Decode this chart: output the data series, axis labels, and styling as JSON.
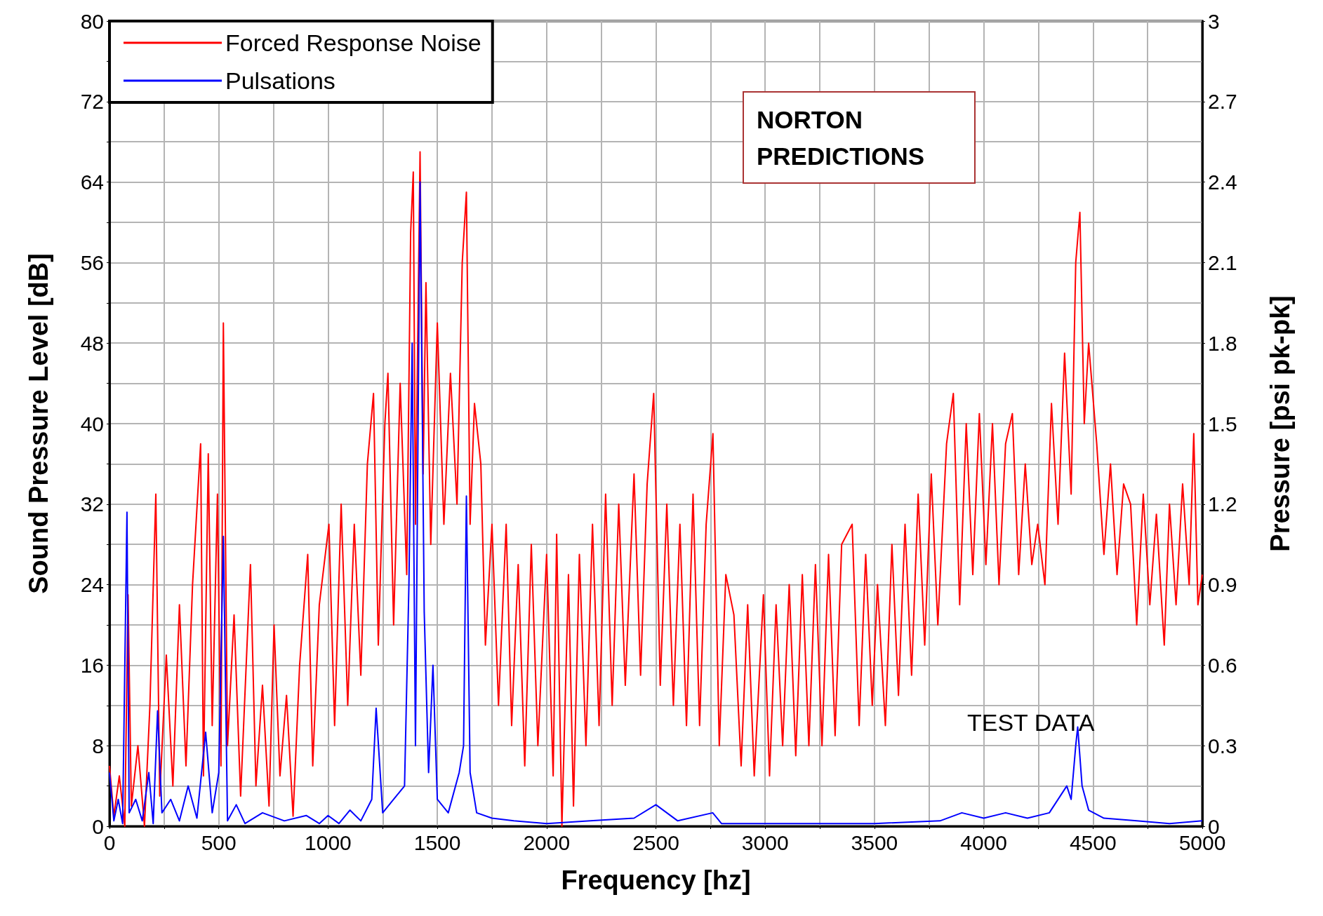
{
  "chart_data": {
    "type": "line",
    "xlabel": "Frequency [hz]",
    "ylabel": "Sound Pressure Level [dB]",
    "y2label": "Pressure [psi pk-pk]",
    "xlim": [
      0,
      5000
    ],
    "xticks": [
      0,
      {
        "value": 250,
        "label": null
      },
      500,
      {
        "value": 750,
        "label": null
      },
      1000,
      {
        "value": 1250,
        "label": null
      },
      1500,
      {
        "value": 1750,
        "label": null
      },
      2000,
      {
        "value": 2250,
        "label": null
      },
      2500,
      {
        "value": 2750,
        "label": null
      },
      3000,
      {
        "value": 3250,
        "label": null
      },
      3500,
      {
        "value": 3750,
        "label": null
      },
      4000,
      {
        "value": 4250,
        "label": null
      },
      4500,
      {
        "value": 4750,
        "label": null
      },
      5000
    ],
    "ylim": [
      0,
      80
    ],
    "yticks": [
      0,
      {
        "value": 4,
        "label": null
      },
      8,
      {
        "value": 12,
        "label": null
      },
      16,
      {
        "value": 20,
        "label": null
      },
      24,
      {
        "value": 28,
        "label": null
      },
      32,
      {
        "value": 36,
        "label": null
      },
      40,
      {
        "value": 44,
        "label": null
      },
      48,
      {
        "value": 52,
        "label": null
      },
      56,
      {
        "value": 60,
        "label": null
      },
      64,
      {
        "value": 68,
        "label": null
      },
      72,
      {
        "value": 76,
        "label": null
      },
      80
    ],
    "y2lim": [
      0,
      3
    ],
    "y2ticks": [
      0,
      0.3,
      0.6,
      0.9,
      1.2,
      1.5,
      1.8,
      2.1,
      2.4,
      2.7,
      3
    ],
    "grid": true,
    "legend": "top left",
    "marker": "none",
    "line_style": "solid",
    "annotations": [
      "NORTON PREDICTIONS",
      "TEST DATA"
    ],
    "series": [
      {
        "name": "Forced Response Noise",
        "color": "#ff0000",
        "x": [
          0,
          20,
          45,
          70,
          85,
          100,
          130,
          160,
          185,
          212,
          230,
          260,
          290,
          320,
          350,
          380,
          417,
          430,
          452,
          470,
          494,
          510,
          521,
          540,
          570,
          600,
          645,
          670,
          700,
          730,
          753,
          780,
          810,
          840,
          870,
          907,
          930,
          960,
          1004,
          1030,
          1060,
          1090,
          1120,
          1150,
          1180,
          1208,
          1230,
          1260,
          1274,
          1300,
          1330,
          1360,
          1378,
          1390,
          1400,
          1421,
          1435,
          1448,
          1470,
          1500,
          1530,
          1560,
          1590,
          1614,
          1633,
          1650,
          1670,
          1699,
          1720,
          1750,
          1780,
          1815,
          1840,
          1870,
          1900,
          1930,
          1960,
          2000,
          2030,
          2046,
          2070,
          2100,
          2123,
          2150,
          2180,
          2210,
          2240,
          2270,
          2300,
          2330,
          2360,
          2400,
          2430,
          2460,
          2490,
          2520,
          2550,
          2580,
          2610,
          2640,
          2670,
          2700,
          2730,
          2761,
          2790,
          2820,
          2857,
          2890,
          2920,
          2950,
          2992,
          3020,
          3050,
          3080,
          3110,
          3140,
          3170,
          3200,
          3230,
          3260,
          3290,
          3320,
          3350,
          3398,
          3430,
          3460,
          3490,
          3514,
          3550,
          3580,
          3610,
          3640,
          3670,
          3700,
          3730,
          3760,
          3790,
          3830,
          3861,
          3890,
          3920,
          3950,
          3980,
          4010,
          4040,
          4070,
          4100,
          4131,
          4160,
          4190,
          4220,
          4247,
          4280,
          4310,
          4340,
          4370,
          4400,
          4421,
          4440,
          4460,
          4480,
          4517,
          4550,
          4580,
          4610,
          4640,
          4672,
          4700,
          4730,
          4760,
          4790,
          4826,
          4850,
          4880,
          4910,
          4940,
          4961,
          4980,
          5000
        ],
        "values": [
          6,
          1,
          5,
          0,
          23,
          2,
          8,
          0,
          12,
          33,
          3,
          17,
          4,
          22,
          6,
          24,
          38,
          5,
          37,
          10,
          33,
          6,
          50,
          8,
          21,
          3,
          26,
          4,
          14,
          2,
          20,
          5,
          13,
          1,
          16,
          27,
          6,
          22,
          30,
          10,
          32,
          12,
          30,
          15,
          36,
          43,
          18,
          40,
          45,
          20,
          44,
          25,
          59,
          65,
          30,
          67,
          35,
          54,
          28,
          50,
          30,
          45,
          32,
          56,
          63,
          30,
          42,
          36,
          18,
          30,
          12,
          30,
          10,
          26,
          6,
          28,
          8,
          27,
          5,
          29,
          0,
          25,
          2,
          27,
          8,
          30,
          10,
          33,
          12,
          32,
          14,
          35,
          15,
          34,
          43,
          14,
          32,
          12,
          30,
          10,
          33,
          10,
          30,
          39,
          8,
          25,
          21,
          6,
          22,
          5,
          23,
          5,
          22,
          8,
          24,
          7,
          25,
          8,
          26,
          8,
          27,
          9,
          28,
          30,
          10,
          27,
          12,
          24,
          10,
          28,
          13,
          30,
          15,
          33,
          18,
          35,
          20,
          38,
          43,
          22,
          40,
          25,
          41,
          26,
          40,
          24,
          38,
          41,
          25,
          36,
          26,
          30,
          24,
          42,
          30,
          47,
          33,
          56,
          61,
          40,
          48,
          38,
          27,
          36,
          25,
          34,
          32,
          20,
          33,
          22,
          31,
          18,
          32,
          22,
          34,
          24,
          39,
          22,
          25
        ]
      },
      {
        "name": "Pulsations",
        "color": "#0000ff",
        "axis": "y2",
        "x": [
          0,
          20,
          40,
          60,
          80,
          90,
          120,
          150,
          180,
          200,
          220,
          240,
          280,
          320,
          360,
          400,
          440,
          470,
          500,
          521,
          540,
          580,
          620,
          700,
          800,
          900,
          960,
          1000,
          1050,
          1100,
          1150,
          1200,
          1220,
          1250,
          1300,
          1350,
          1370,
          1385,
          1400,
          1421,
          1440,
          1460,
          1480,
          1500,
          1550,
          1600,
          1620,
          1633,
          1650,
          1680,
          1750,
          1850,
          2000,
          2200,
          2400,
          2500,
          2600,
          2760,
          2800,
          3000,
          3500,
          3800,
          3900,
          4000,
          4100,
          4200,
          4300,
          4380,
          4400,
          4421,
          4430,
          4450,
          4480,
          4550,
          4700,
          4850,
          5000
        ],
        "values": [
          0.2,
          0.02,
          0.1,
          0.01,
          1.17,
          0.05,
          0.1,
          0.02,
          0.2,
          0.01,
          0.43,
          0.05,
          0.1,
          0.02,
          0.15,
          0.03,
          0.35,
          0.05,
          0.2,
          1.08,
          0.02,
          0.08,
          0.01,
          0.05,
          0.02,
          0.04,
          0.01,
          0.04,
          0.01,
          0.06,
          0.02,
          0.1,
          0.44,
          0.05,
          0.1,
          0.15,
          0.9,
          1.8,
          0.3,
          2.4,
          0.8,
          0.2,
          0.6,
          0.1,
          0.05,
          0.2,
          0.3,
          1.23,
          0.2,
          0.05,
          0.03,
          0.02,
          0.01,
          0.02,
          0.03,
          0.08,
          0.02,
          0.05,
          0.01,
          0.01,
          0.01,
          0.02,
          0.05,
          0.03,
          0.05,
          0.03,
          0.05,
          0.15,
          0.1,
          0.3,
          0.37,
          0.15,
          0.06,
          0.03,
          0.02,
          0.01,
          0.02
        ]
      }
    ]
  }
}
